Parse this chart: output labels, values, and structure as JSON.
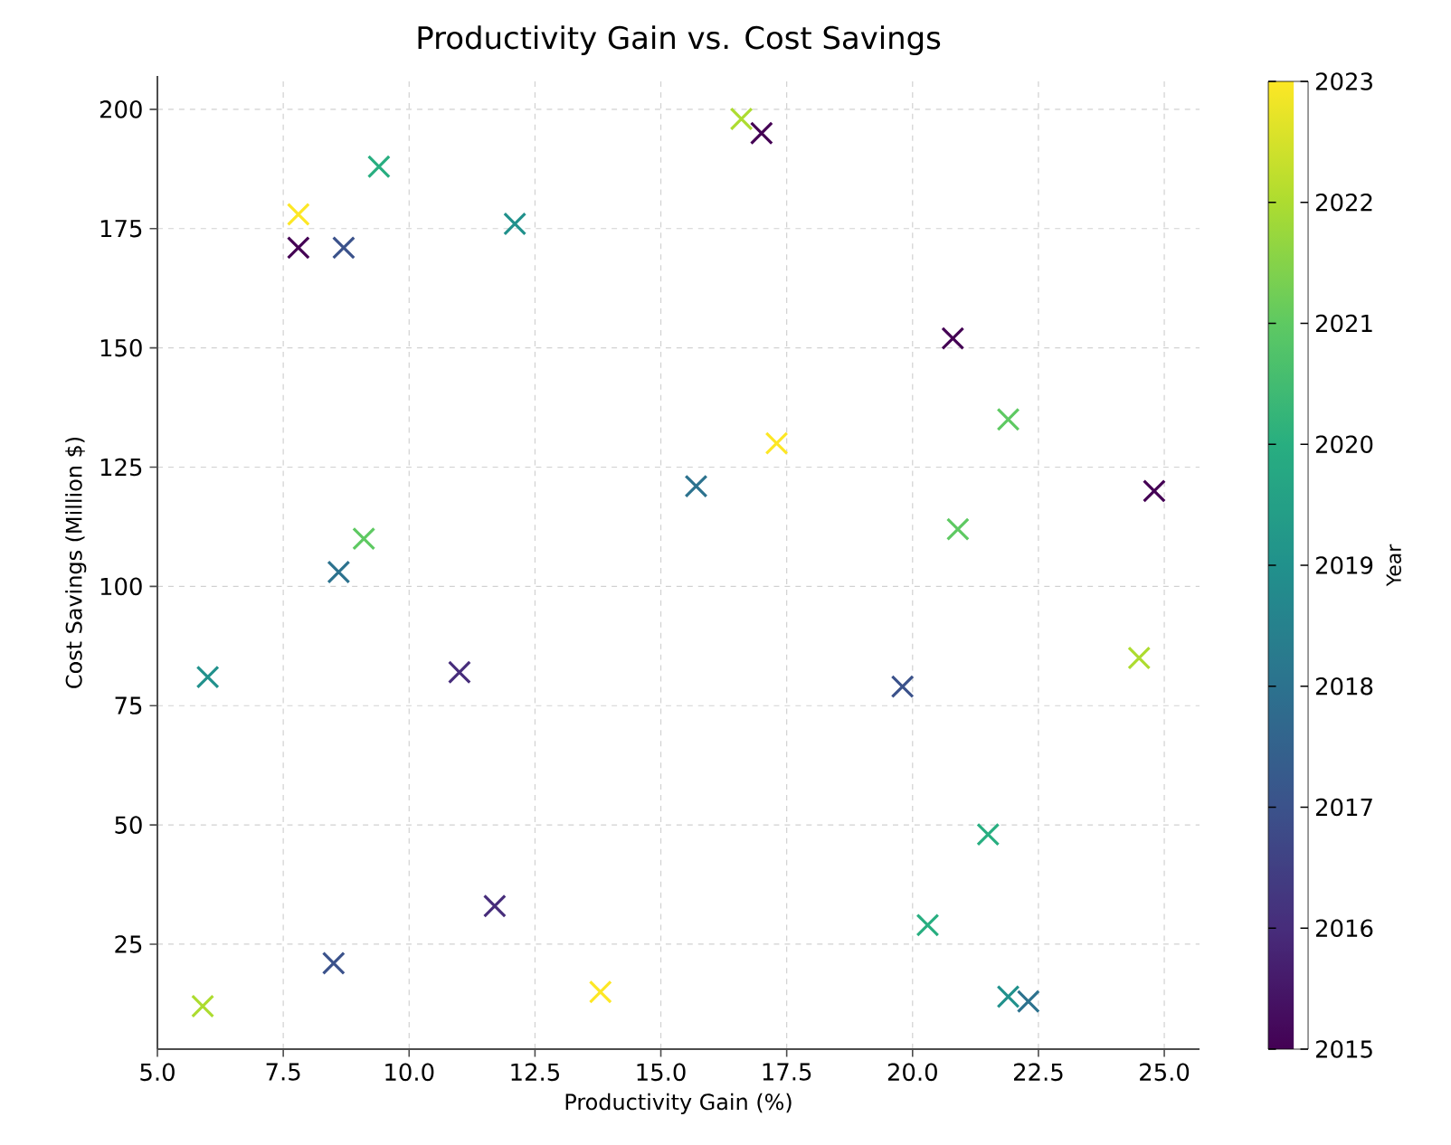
{
  "chart_data": {
    "type": "scatter",
    "title": "Productivity Gain vs. Cost Savings",
    "xlabel": "Productivity Gain (%)",
    "ylabel": "Cost Savings (Million $)",
    "clabel": "Year",
    "x": [
      7.8,
      7.8,
      8.7,
      9.4,
      12.1,
      15.7,
      9.1,
      8.6,
      16.6,
      17.0,
      20.8,
      21.9,
      17.3,
      24.8,
      20.9,
      6.0,
      11.0,
      11.7,
      8.5,
      13.8,
      5.9,
      19.8,
      24.5,
      21.5,
      20.3,
      21.9,
      22.3
    ],
    "values": [
      178,
      171,
      171,
      188,
      176,
      121,
      110,
      103,
      198,
      195,
      152,
      135,
      130,
      120,
      112,
      81,
      82,
      33,
      21,
      15,
      12,
      79,
      85,
      48,
      29,
      14,
      13
    ],
    "cvalues": [
      2023,
      2015,
      2017,
      2020,
      2019,
      2018,
      2021,
      2018,
      2022,
      2015,
      2015,
      2021,
      2023,
      2015,
      2021,
      2019,
      2016,
      2016,
      2017,
      2023,
      2022,
      2017,
      2022,
      2020,
      2020,
      2019,
      2018
    ],
    "marker": "cross",
    "grid": true,
    "xlim": [
      5.0,
      25.7
    ],
    "ylim": [
      3,
      207
    ],
    "xticks": [
      {
        "value": 5,
        "label": "5.0"
      },
      {
        "value": 7.5,
        "label": "7.5"
      },
      {
        "value": 10,
        "label": "10.0"
      },
      {
        "value": 12.5,
        "label": "12.5"
      },
      {
        "value": 15,
        "label": "15.0"
      },
      {
        "value": 17.5,
        "label": "17.5"
      },
      {
        "value": 20,
        "label": "20.0"
      },
      {
        "value": 22.5,
        "label": "22.5"
      },
      {
        "value": 25,
        "label": "25.0"
      }
    ],
    "yticks": [
      25,
      50,
      75,
      100,
      125,
      150,
      175,
      200
    ],
    "clim": [
      2015,
      2023
    ],
    "cticks": [
      2015,
      2016,
      2017,
      2018,
      2019,
      2020,
      2021,
      2022,
      2023
    ]
  }
}
